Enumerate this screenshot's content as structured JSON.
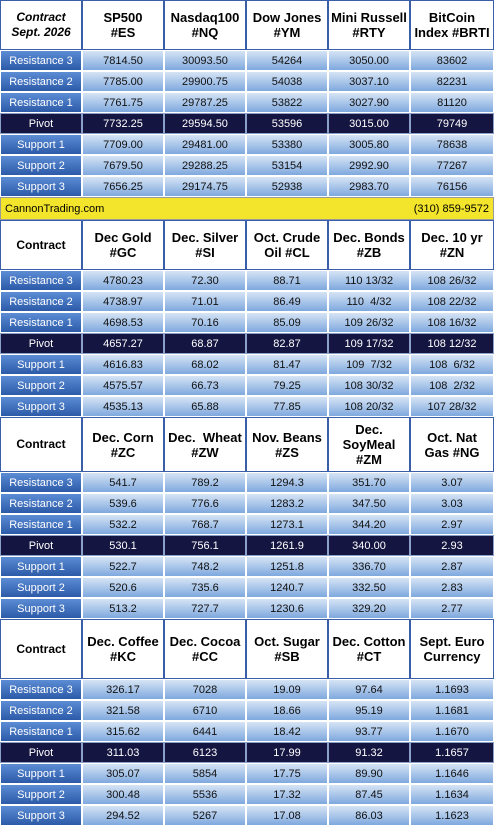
{
  "sections": [
    {
      "header": [
        [
          "Contract",
          "Sept. 2026"
        ],
        [
          "SP500",
          "#ES"
        ],
        [
          "Nasdaq100",
          "#NQ"
        ],
        [
          "Dow Jones",
          "#YM"
        ],
        [
          "Mini Russell",
          "#RTY"
        ],
        [
          "BitCoin",
          "Index #BRTI"
        ]
      ],
      "rows": [
        [
          "Resistance 3",
          "7814.50",
          "30093.50",
          "54264",
          "3050.00",
          "83602"
        ],
        [
          "Resistance 2",
          "7785.00",
          "29900.75",
          "54038",
          "3037.10",
          "82231"
        ],
        [
          "Resistance 1",
          "7761.75",
          "29787.25",
          "53822",
          "3027.90",
          "81120"
        ],
        [
          "Pivot",
          "7732.25",
          "29594.50",
          "53596",
          "3015.00",
          "79749"
        ],
        [
          "Support 1",
          "7709.00",
          "29481.00",
          "53380",
          "3005.80",
          "78638"
        ],
        [
          "Support 2",
          "7679.50",
          "29288.25",
          "53154",
          "2992.90",
          "77267"
        ],
        [
          "Support 3",
          "7656.25",
          "29174.75",
          "52938",
          "2983.70",
          "76156"
        ]
      ]
    },
    {
      "header": [
        [
          "Contract"
        ],
        [
          "Dec Gold",
          "#GC"
        ],
        [
          "Dec. Silver",
          "#SI"
        ],
        [
          "Oct. Crude",
          "Oil #CL"
        ],
        [
          "Dec. Bonds",
          "#ZB"
        ],
        [
          "Dec. 10 yr",
          "#ZN"
        ]
      ],
      "rows": [
        [
          "Resistance 3",
          "4780.23",
          "72.30",
          "88.71",
          "110 13/32",
          "108 26/32"
        ],
        [
          "Resistance 2",
          "4738.97",
          "71.01",
          "86.49",
          "110  4/32",
          "108 22/32"
        ],
        [
          "Resistance 1",
          "4698.53",
          "70.16",
          "85.09",
          "109 26/32",
          "108 16/32"
        ],
        [
          "Pivot",
          "4657.27",
          "68.87",
          "82.87",
          "109 17/32",
          "108 12/32"
        ],
        [
          "Support 1",
          "4616.83",
          "68.02",
          "81.47",
          "109  7/32",
          "108  6/32"
        ],
        [
          "Support 2",
          "4575.57",
          "66.73",
          "79.25",
          "108 30/32",
          "108  2/32"
        ],
        [
          "Support 3",
          "4535.13",
          "65.88",
          "77.85",
          "108 20/32",
          "107 28/32"
        ]
      ]
    },
    {
      "header": [
        [
          "Contract"
        ],
        [
          "Dec. Corn",
          "#ZC"
        ],
        [
          "Dec.  Wheat",
          "#ZW"
        ],
        [
          "Nov. Beans",
          "#ZS"
        ],
        [
          "Dec.",
          "SoyMeal",
          "#ZM"
        ],
        [
          "Oct. Nat",
          "Gas #NG"
        ]
      ],
      "rows": [
        [
          "Resistance 3",
          "541.7",
          "789.2",
          "1294.3",
          "351.70",
          "3.07"
        ],
        [
          "Resistance 2",
          "539.6",
          "776.6",
          "1283.2",
          "347.50",
          "3.03"
        ],
        [
          "Resistance 1",
          "532.2",
          "768.7",
          "1273.1",
          "344.20",
          "2.97"
        ],
        [
          "Pivot",
          "530.1",
          "756.1",
          "1261.9",
          "340.00",
          "2.93"
        ],
        [
          "Support 1",
          "522.7",
          "748.2",
          "1251.8",
          "336.70",
          "2.87"
        ],
        [
          "Support 2",
          "520.6",
          "735.6",
          "1240.7",
          "332.50",
          "2.83"
        ],
        [
          "Support 3",
          "513.2",
          "727.7",
          "1230.6",
          "329.20",
          "2.77"
        ]
      ]
    },
    {
      "header": [
        [
          "Contract"
        ],
        [
          "Dec. Coffee",
          "#KC"
        ],
        [
          "Dec. Cocoa",
          "#CC"
        ],
        [
          "Oct. Sugar",
          "#SB"
        ],
        [
          "Dec. Cotton",
          "#CT"
        ],
        [
          "Sept. Euro",
          "Currency"
        ]
      ],
      "rows": [
        [
          "Resistance 3",
          "326.17",
          "7028",
          "19.09",
          "97.64",
          "1.1693"
        ],
        [
          "Resistance 2",
          "321.58",
          "6710",
          "18.66",
          "95.19",
          "1.1681"
        ],
        [
          "Resistance 1",
          "315.62",
          "6441",
          "18.42",
          "93.77",
          "1.1670"
        ],
        [
          "Pivot",
          "311.03",
          "6123",
          "17.99",
          "91.32",
          "1.1657"
        ],
        [
          "Support 1",
          "305.07",
          "5854",
          "17.75",
          "89.90",
          "1.1646"
        ],
        [
          "Support 2",
          "300.48",
          "5536",
          "17.32",
          "87.45",
          "1.1634"
        ],
        [
          "Support 3",
          "294.52",
          "5267",
          "17.08",
          "86.03",
          "1.1623"
        ]
      ]
    }
  ],
  "footer": {
    "site": "CannonTrading.com",
    "phone": "(310) 859-9572"
  }
}
